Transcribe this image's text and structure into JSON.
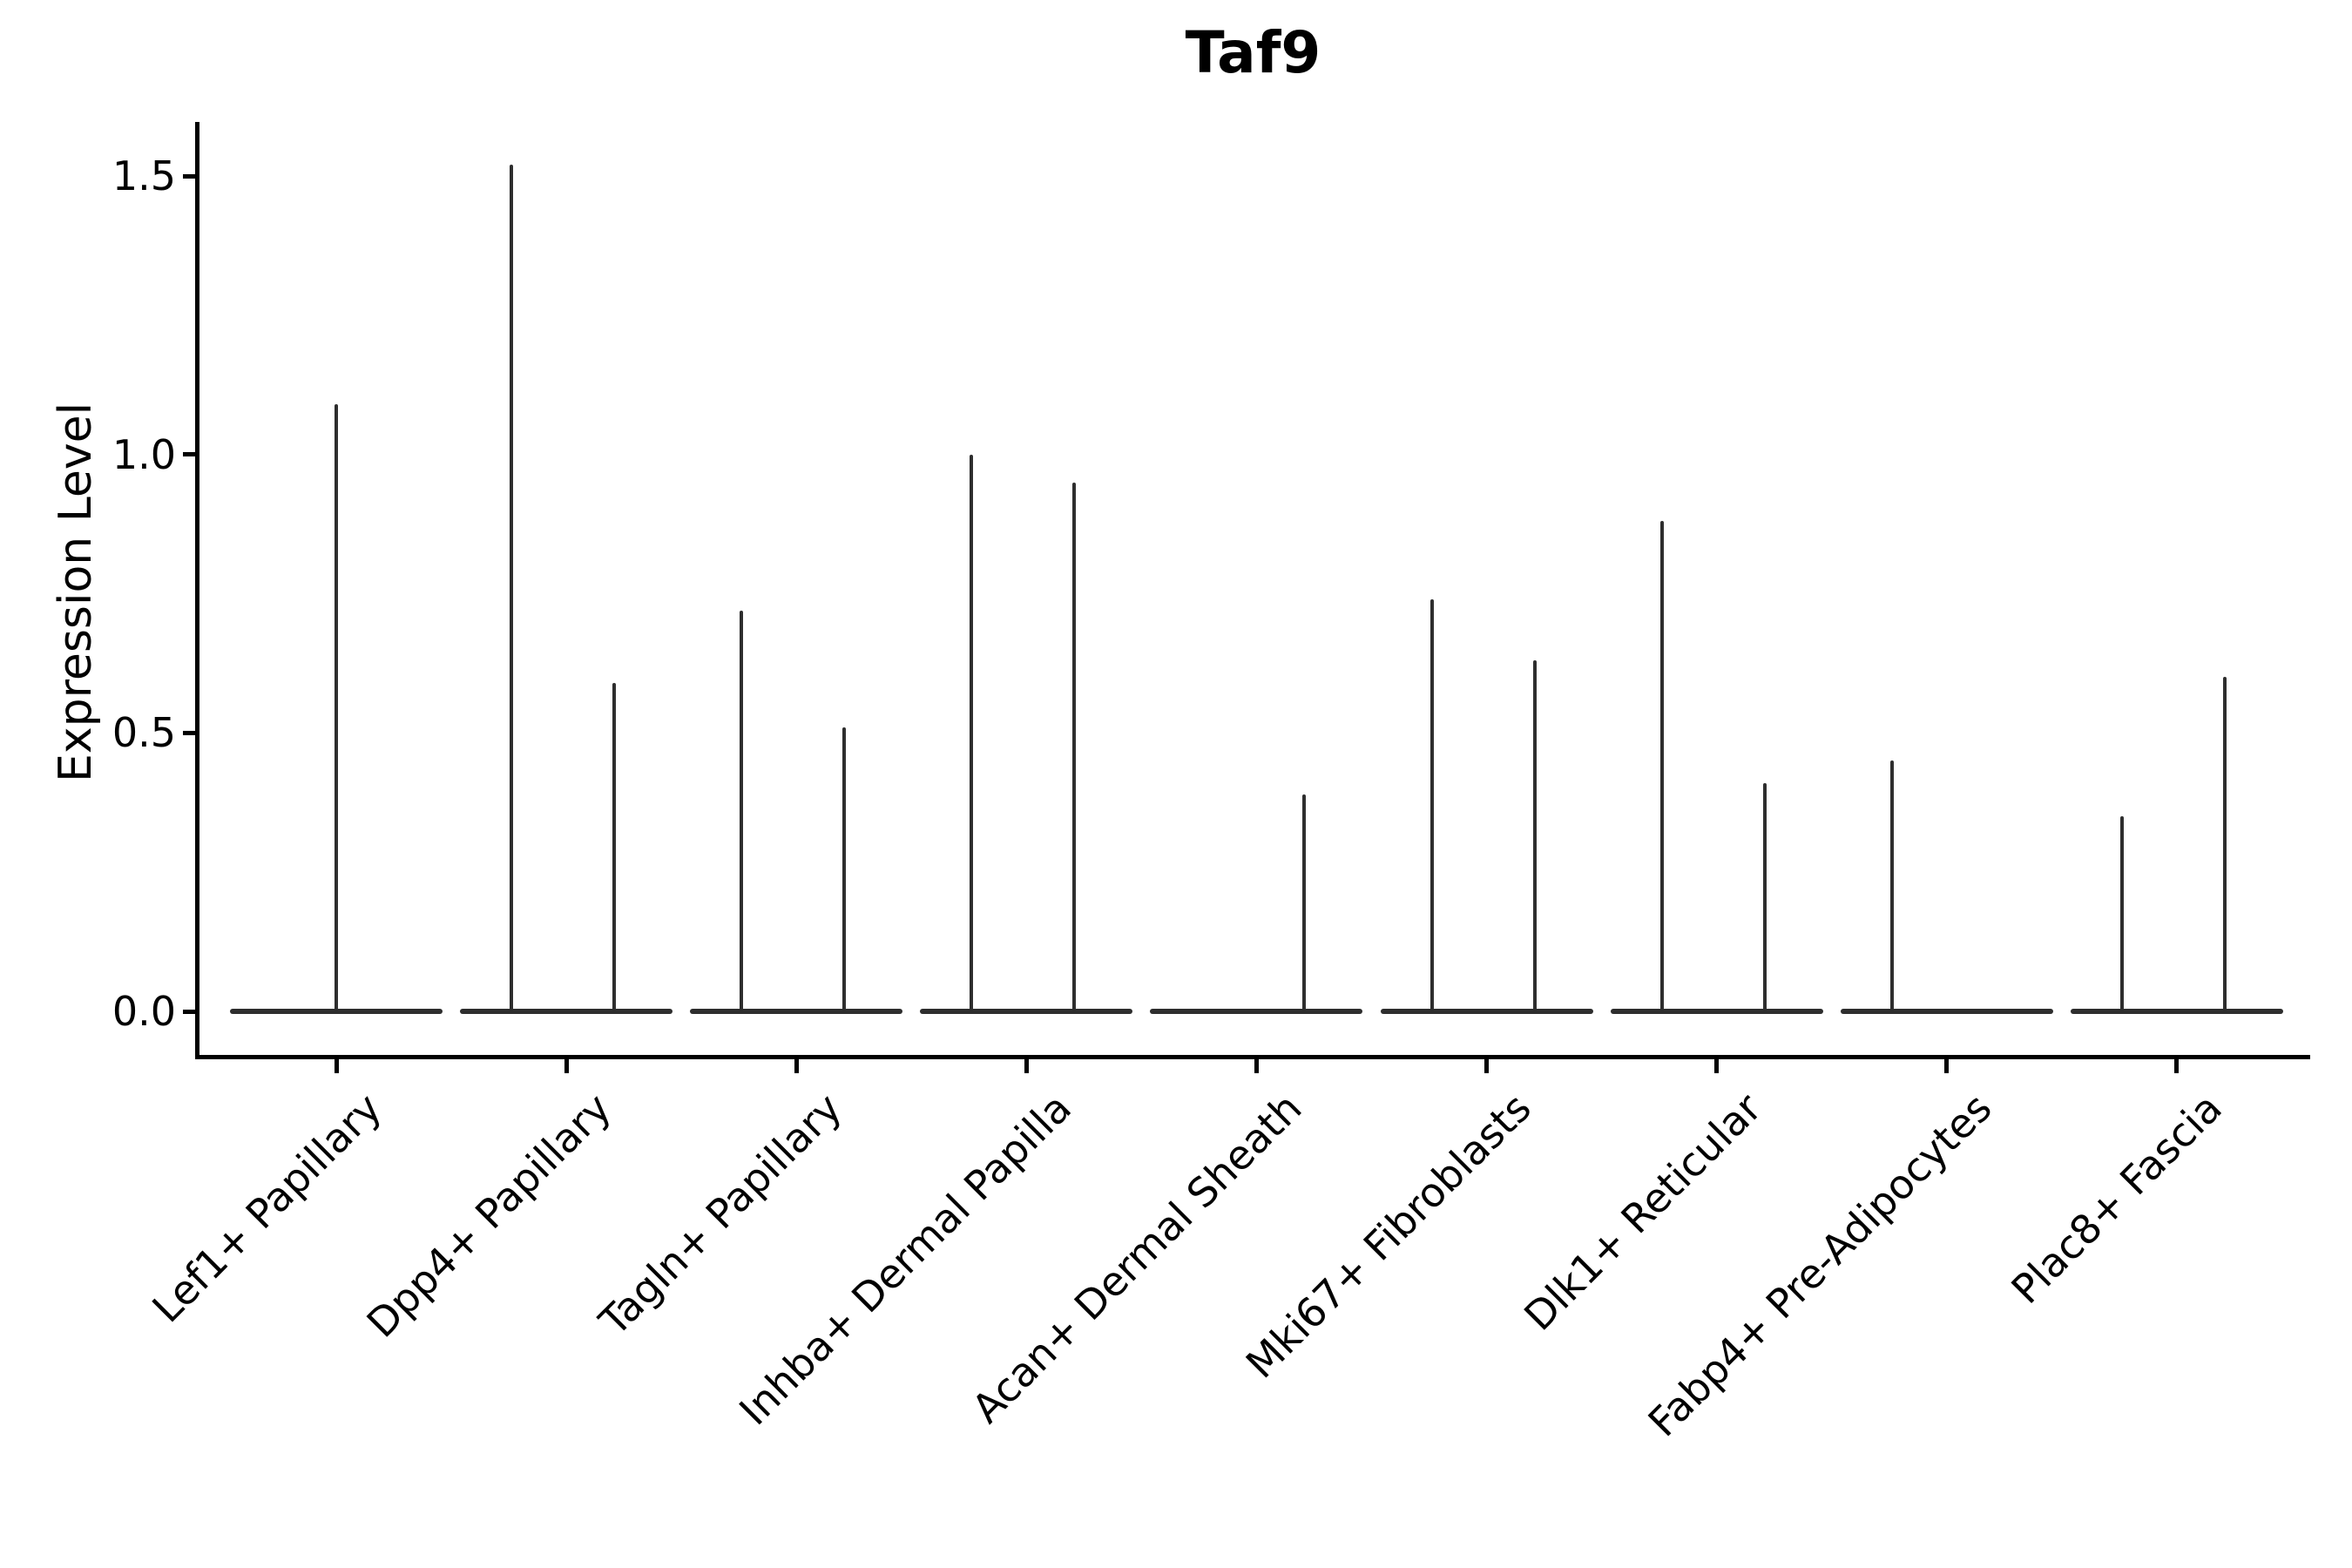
{
  "title": "Taf9",
  "y_axis": {
    "label": "Expression Level",
    "tick_labels": [
      "0.0",
      "0.5",
      "1.0",
      "1.5"
    ]
  },
  "colors": {
    "axis_ink": "#000000",
    "violin_ink": "#2e2e2e",
    "background": "#ffffff"
  },
  "chart_data": {
    "type": "violin",
    "title": "Taf9",
    "xlabel": "",
    "ylabel": "Expression Level",
    "ylim": [
      0,
      1.6
    ],
    "yticks": [
      0.0,
      0.5,
      1.0,
      1.5
    ],
    "grid": false,
    "legend": "none",
    "description": "Collapsed violins: flat baseline at expression 0 for every cluster, with thin density spikes at nonzero expression values. Spike pos = left/center/right violin slot within each cluster.",
    "baseline_value": 0.0,
    "categories": [
      {
        "label": "Lef1+ Papillary",
        "spikes": [
          {
            "pos": "center",
            "value": 1.09
          }
        ]
      },
      {
        "label": "Dpp4+ Papillary",
        "spikes": [
          {
            "pos": "left",
            "value": 1.52
          },
          {
            "pos": "right",
            "value": 0.59
          }
        ]
      },
      {
        "label": "Tagln+ Papillary",
        "spikes": [
          {
            "pos": "left",
            "value": 0.72
          },
          {
            "pos": "right",
            "value": 0.51
          }
        ]
      },
      {
        "label": "Inhba+ Dermal Papilla",
        "spikes": [
          {
            "pos": "left",
            "value": 1.0
          },
          {
            "pos": "right",
            "value": 0.95
          }
        ]
      },
      {
        "label": "Acan+ Dermal Sheath",
        "spikes": [
          {
            "pos": "right",
            "value": 0.39
          }
        ]
      },
      {
        "label": "Mki67+ Fibroblasts",
        "spikes": [
          {
            "pos": "left",
            "value": 0.74
          },
          {
            "pos": "right",
            "value": 0.63
          }
        ]
      },
      {
        "label": "Dlk1+ Reticular",
        "spikes": [
          {
            "pos": "left",
            "value": 0.88
          },
          {
            "pos": "right",
            "value": 0.41
          }
        ]
      },
      {
        "label": "Fabp4+ Pre-Adipocytes",
        "spikes": [
          {
            "pos": "left",
            "value": 0.45
          }
        ]
      },
      {
        "label": "Plac8+ Fascia",
        "spikes": [
          {
            "pos": "left",
            "value": 0.35
          },
          {
            "pos": "right",
            "value": 0.6
          }
        ]
      }
    ]
  }
}
